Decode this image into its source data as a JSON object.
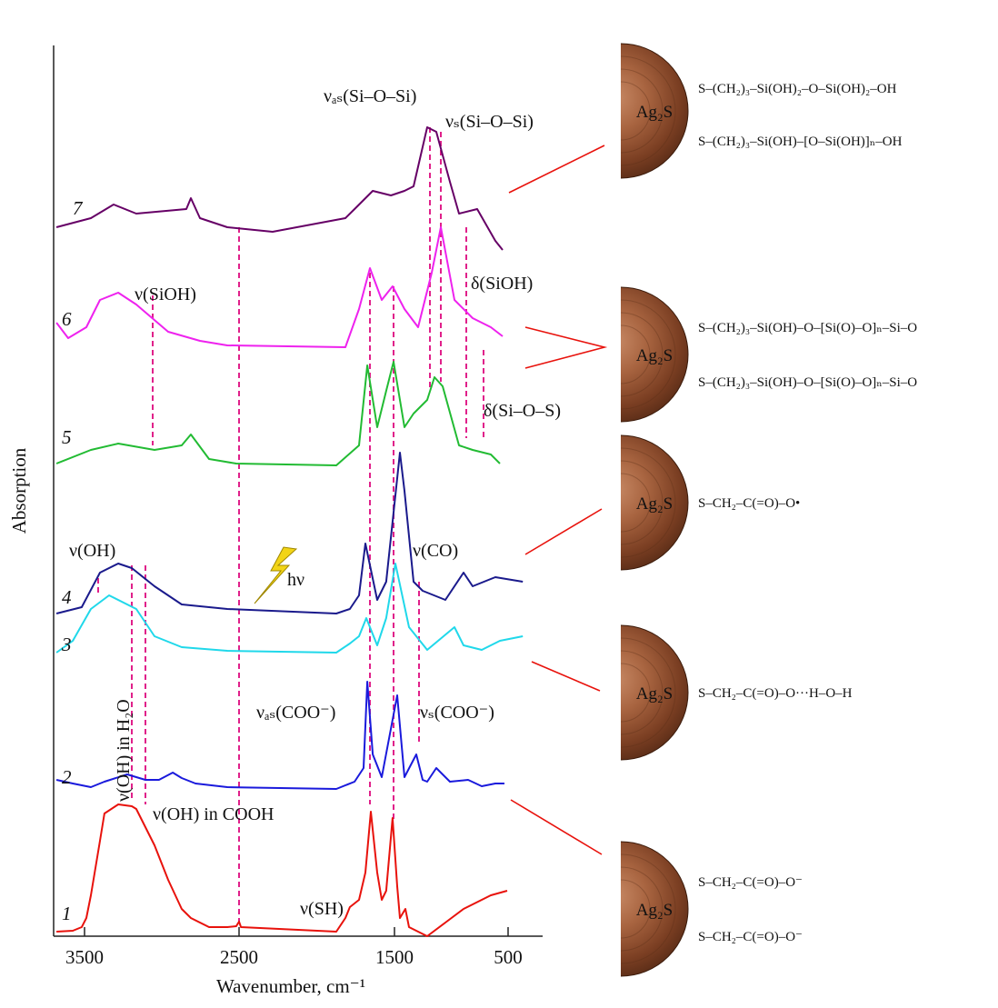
{
  "chart_data": {
    "type": "line",
    "x_label": "Wavenumber, cm⁻¹",
    "y_label": "Absorption",
    "xlim": [
      3700,
      200
    ],
    "xticks": [
      3500,
      2500,
      1500,
      500
    ],
    "ylim": [
      0,
      98
    ],
    "series": [
      {
        "name": "1",
        "color": "#e8120c",
        "x": [
          3682,
          3576,
          3518,
          3488,
          3459,
          3400,
          3371,
          3282,
          3194,
          3165,
          3047,
          2959,
          2871,
          2812,
          2694,
          2576,
          2518,
          2500,
          2488,
          1874,
          1816,
          1787,
          1728,
          1687,
          1652,
          1611,
          1582,
          1553,
          1512,
          1476,
          1452,
          1404,
          1372,
          1292,
          1212,
          1052,
          892,
          812,
          652,
          508
        ],
        "values": [
          0.5,
          0.6,
          1,
          2,
          4.5,
          10.5,
          13.5,
          14.5,
          14.3,
          14,
          10,
          6.2,
          3,
          2,
          1,
          1,
          1.1,
          1.6,
          1,
          0.5,
          2,
          3.2,
          4,
          7,
          13.7,
          7,
          4,
          5,
          13,
          5.5,
          2,
          3,
          1,
          0.5,
          0,
          1.5,
          3,
          3.5,
          4.5,
          5
        ]
      },
      {
        "name": "2",
        "color": "#1a1adc",
        "x": [
          3682,
          3576,
          3459,
          3371,
          3224,
          3106,
          3018,
          2929,
          2871,
          2782,
          2576,
          1874,
          1757,
          1699,
          1675,
          1640,
          1582,
          1476,
          1412,
          1308,
          1252,
          1212,
          1132,
          1012,
          852,
          732,
          612,
          532
        ],
        "values": [
          17.2,
          16.8,
          16.4,
          17,
          17.8,
          17.2,
          17.2,
          18,
          17.4,
          16.8,
          16.4,
          16.2,
          17,
          18.5,
          28,
          20,
          17.5,
          26.5,
          17.5,
          20,
          17.2,
          17,
          18.5,
          17,
          17.2,
          16.5,
          16.8,
          16.8
        ]
      },
      {
        "name": "3",
        "color": "#20d8ea",
        "x": [
          3682,
          3576,
          3459,
          3341,
          3165,
          3047,
          2871,
          2576,
          1874,
          1787,
          1728,
          1681,
          1611,
          1553,
          1492,
          1372,
          1212,
          972,
          892,
          732,
          572,
          372
        ],
        "values": [
          31.2,
          32.5,
          36,
          37.5,
          36,
          33,
          31.8,
          31.4,
          31.2,
          32.2,
          33,
          35,
          32,
          35,
          41,
          34,
          31.5,
          34,
          32,
          31.5,
          32.5,
          33
        ]
      },
      {
        "name": "4",
        "color": "#1a1a8c",
        "x": [
          3682,
          3518,
          3400,
          3282,
          3194,
          3047,
          2871,
          2576,
          1874,
          1787,
          1728,
          1687,
          1611,
          1553,
          1452,
          1412,
          1332,
          1252,
          1052,
          892,
          812,
          612,
          372
        ],
        "values": [
          35.5,
          36.2,
          40,
          41,
          40.5,
          38.5,
          36.5,
          36,
          35.5,
          36,
          37.5,
          43.2,
          37,
          39,
          53.2,
          49,
          39,
          38,
          37,
          40,
          38.5,
          39.5,
          39
        ]
      },
      {
        "name": "5",
        "color": "#22bb33",
        "x": [
          3682,
          3459,
          3282,
          3047,
          2871,
          2812,
          2694,
          2518,
          1874,
          1728,
          1675,
          1611,
          1553,
          1506,
          1412,
          1332,
          1212,
          1148,
          1076,
          932,
          812,
          652,
          572
        ],
        "values": [
          52,
          53.5,
          54.2,
          53.5,
          54,
          55.2,
          52.5,
          52,
          51.8,
          54,
          62.8,
          56,
          60,
          63.2,
          56,
          57.5,
          59,
          61.5,
          60.5,
          54,
          53.5,
          53,
          52
        ]
      },
      {
        "name": "6",
        "color": "#ee22ee",
        "x": [
          3682,
          3606,
          3488,
          3400,
          3282,
          3165,
          2959,
          2753,
          2576,
          1816,
          1728,
          1658,
          1582,
          1512,
          1412,
          1292,
          1172,
          1092,
          972,
          812,
          652,
          548
        ],
        "values": [
          67.5,
          65.8,
          67,
          70,
          70.8,
          69.5,
          66.5,
          65.5,
          65,
          64.8,
          69,
          73.5,
          70,
          71.5,
          69,
          67,
          73,
          78,
          70,
          68,
          67,
          66
        ]
      },
      {
        "name": "7",
        "color": "#660066",
        "x": [
          3682,
          3459,
          3312,
          3165,
          2841,
          2812,
          2753,
          2576,
          2284,
          1816,
          1757,
          1640,
          1523,
          1412,
          1332,
          1212,
          1132,
          1012,
          932,
          772,
          612,
          548
        ],
        "values": [
          78,
          79,
          80.5,
          79.5,
          80,
          81.2,
          79,
          78,
          77.5,
          79,
          80,
          82,
          81.5,
          82,
          82.5,
          89,
          88.5,
          83,
          79.5,
          80,
          76.5,
          75.5
        ]
      }
    ],
    "annotations": [
      "ν(OH)",
      "ν(SiOH)",
      "δ(SiOH)",
      "νₐₛ(Si–O–Si)",
      "νₛ(Si–O–Si)",
      "δ(Si–O–S)",
      "ν(CO)",
      "hν",
      "νₐₛ(COO⁻)",
      "νₛ(COO⁻)",
      "ν(OH) in H₂O",
      "ν(OH) in COOH",
      "ν(SH)"
    ],
    "structures": [
      {
        "particle": "Ag₂S",
        "chains": [
          "S–(CH₂)₃–Si(OH)₂–O–Si(OH)₂–OH",
          "S–(CH₂)₃–Si(OH)–[O–Si(OH)]ₙ–OH"
        ]
      },
      {
        "particle": "Ag₂S",
        "chains": [
          "S–(CH₂)₃–Si(OH)–O–[Si(O)–O]ₙ–Si–O",
          "S–(CH₂)₃–Si(OH)–O–[Si(O)–O]ₙ–Si–O"
        ]
      },
      {
        "particle": "Ag₂S",
        "chains": [
          "S–CH₂–C(=O)–O•"
        ]
      },
      {
        "particle": "Ag₂S",
        "chains": [
          "S–CH₂–C(=O)–O···H–O–H"
        ]
      },
      {
        "particle": "Ag₂S",
        "chains": [
          "S–CH₂–C(=O)–O⁻",
          "S–CH₂–C(=O)–O⁻"
        ]
      }
    ]
  }
}
